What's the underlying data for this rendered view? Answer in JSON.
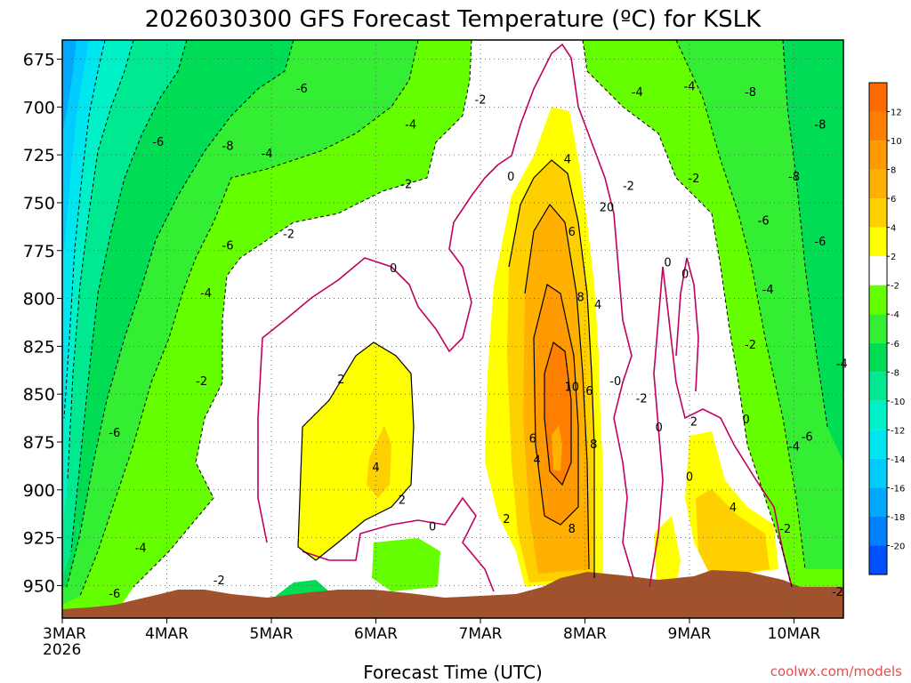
{
  "chart_data": {
    "type": "heatmap",
    "title": "2026030300 GFS Forecast Temperature (ºC) for KSLK",
    "xlabel": "Forecast Time (UTC)",
    "credit": "coolwx.com/models",
    "x_ticks": [
      "3MAR",
      "4MAR",
      "5MAR",
      "6MAR",
      "7MAR",
      "8MAR",
      "9MAR",
      "10MAR"
    ],
    "x_year": "2026",
    "y_ticks": [
      675,
      700,
      725,
      750,
      775,
      800,
      825,
      850,
      875,
      900,
      925,
      950
    ],
    "y_range": [
      665,
      967
    ],
    "y_axis": "pressure (hPa), increasing downward",
    "grid": true,
    "colorbar": {
      "labels": [
        12,
        10,
        8,
        6,
        4,
        2,
        -2,
        -4,
        -6,
        -8,
        -10,
        -12,
        -14,
        -16,
        -18,
        -20
      ],
      "bins": [
        {
          "range": "> 12",
          "color": "#ff6a00"
        },
        {
          "range": "10 to 12",
          "color": "#ff8000"
        },
        {
          "range": "8 to 10",
          "color": "#ff9a00"
        },
        {
          "range": "6 to 8",
          "color": "#ffb000"
        },
        {
          "range": "4 to 6",
          "color": "#ffd000"
        },
        {
          "range": "2 to 4",
          "color": "#ffff00"
        },
        {
          "range": "-2 to 2",
          "color": "#ffffff"
        },
        {
          "range": "-4 to -2",
          "color": "#66ff00"
        },
        {
          "range": "-6 to -4",
          "color": "#33ee33"
        },
        {
          "range": "-8 to -6",
          "color": "#00dd55"
        },
        {
          "range": "-10 to -8",
          "color": "#00e890"
        },
        {
          "range": "-12 to -10",
          "color": "#00f0c8"
        },
        {
          "range": "-14 to -12",
          "color": "#00e6f0"
        },
        {
          "range": "-16 to -14",
          "color": "#00ccff"
        },
        {
          "range": "-18 to -16",
          "color": "#00a8ff"
        },
        {
          "range": "-20 to -18",
          "color": "#0080ff"
        },
        {
          "range": "< -20",
          "color": "#0050ff"
        }
      ]
    },
    "contour_labels": [
      {
        "text": "-6",
        "time": "3MAR12",
        "p": 870
      },
      {
        "text": "-4",
        "time": "3MAR18",
        "p": 930
      },
      {
        "text": "-6",
        "time": "3MAR12",
        "p": 954
      },
      {
        "text": "-6",
        "time": "3MAR22",
        "p": 718
      },
      {
        "text": "-4",
        "time": "4MAR09",
        "p": 797
      },
      {
        "text": "-2",
        "time": "4MAR08",
        "p": 843
      },
      {
        "text": "-2",
        "time": "4MAR12",
        "p": 947
      },
      {
        "text": "-8",
        "time": "4MAR14",
        "p": 720
      },
      {
        "text": "-6",
        "time": "4MAR14",
        "p": 772
      },
      {
        "text": "-6",
        "time": "5MAR07",
        "p": 690
      },
      {
        "text": "-4",
        "time": "4MAR23",
        "p": 724
      },
      {
        "text": "-2",
        "time": "5MAR04",
        "p": 766
      },
      {
        "text": "-4",
        "time": "6MAR08",
        "p": 709
      },
      {
        "text": "-2",
        "time": "6MAR07",
        "p": 740
      },
      {
        "text": "0",
        "time": "6MAR04",
        "p": 784
      },
      {
        "text": "2",
        "time": "5MAR16",
        "p": 842
      },
      {
        "text": "4",
        "time": "6MAR00",
        "p": 888
      },
      {
        "text": "2",
        "time": "6MAR06",
        "p": 905
      },
      {
        "text": "0",
        "time": "6MAR13",
        "p": 919
      },
      {
        "text": "-2",
        "time": "7MAR00",
        "p": 696
      },
      {
        "text": "0",
        "time": "7MAR07",
        "p": 736
      },
      {
        "text": "4",
        "time": "7MAR20",
        "p": 727
      },
      {
        "text": "6",
        "time": "7MAR21",
        "p": 765
      },
      {
        "text": "8",
        "time": "7MAR23",
        "p": 799
      },
      {
        "text": "10",
        "time": "7MAR21",
        "p": 846
      },
      {
        "text": "6",
        "time": "7MAR12",
        "p": 873
      },
      {
        "text": "4",
        "time": "7MAR13",
        "p": 884
      },
      {
        "text": "8",
        "time": "7MAR21",
        "p": 920
      },
      {
        "text": "2",
        "time": "7MAR06",
        "p": 915
      },
      {
        "text": "6",
        "time": "8MAR01",
        "p": 848
      },
      {
        "text": "8",
        "time": "8MAR02",
        "p": 876
      },
      {
        "text": "4",
        "time": "8MAR03",
        "p": 803
      },
      {
        "text": "20",
        "time": "8MAR05",
        "p": 752
      },
      {
        "text": "-2",
        "time": "8MAR10",
        "p": 741
      },
      {
        "text": "-4",
        "time": "8MAR12",
        "p": 692
      },
      {
        "text": "-0",
        "time": "8MAR07",
        "p": 843
      },
      {
        "text": "-2",
        "time": "8MAR13",
        "p": 852
      },
      {
        "text": "0",
        "time": "8MAR17",
        "p": 867
      },
      {
        "text": "0",
        "time": "8MAR19",
        "p": 781
      },
      {
        "text": "0",
        "time": "8MAR23",
        "p": 787
      },
      {
        "text": "0",
        "time": "8MAR24",
        "p": 893
      },
      {
        "text": "-2",
        "time": "9MAR01",
        "p": 737
      },
      {
        "text": "-4",
        "time": "9MAR00",
        "p": 689
      },
      {
        "text": "-8",
        "time": "9MAR14",
        "p": 692
      },
      {
        "text": "-6",
        "time": "9MAR17",
        "p": 759
      },
      {
        "text": "-4",
        "time": "9MAR18",
        "p": 795
      },
      {
        "text": "-2",
        "time": "9MAR14",
        "p": 824
      },
      {
        "text": "0",
        "time": "9MAR13",
        "p": 863
      },
      {
        "text": "2",
        "time": "9MAR01",
        "p": 864
      },
      {
        "text": "4",
        "time": "9MAR10",
        "p": 909
      },
      {
        "text": "-2",
        "time": "9MAR22",
        "p": 920
      },
      {
        "text": "-8",
        "time": "10MAR00",
        "p": 736
      },
      {
        "text": "-8",
        "time": "10MAR06",
        "p": 709
      },
      {
        "text": "-4",
        "time": "10MAR00",
        "p": 877
      },
      {
        "text": "-6",
        "time": "10MAR03",
        "p": 872
      },
      {
        "text": "-6",
        "time": "10MAR06",
        "p": 770
      },
      {
        "text": "-4",
        "time": "10MAR11",
        "p": 834
      },
      {
        "text": "-2",
        "time": "10MAR10",
        "p": 953
      }
    ]
  }
}
